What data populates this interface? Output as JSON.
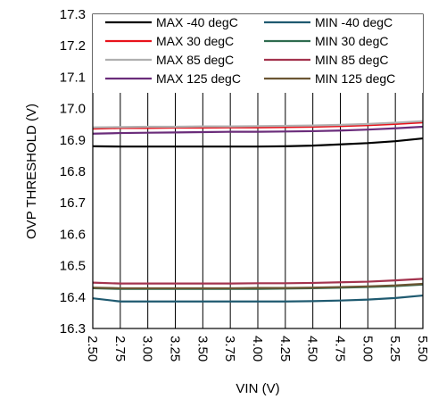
{
  "chart_data": {
    "type": "line",
    "xlabel": "VIN (V)",
    "ylabel": "OVP THRESHOLD (V)",
    "xlim": [
      2.5,
      5.5
    ],
    "ylim": [
      16.3,
      17.3
    ],
    "x_ticks": [
      "2.50",
      "2.75",
      "3.00",
      "3.25",
      "3.50",
      "3.75",
      "4.00",
      "4.25",
      "4.50",
      "4.75",
      "5.00",
      "5.25",
      "5.50"
    ],
    "y_ticks": [
      "16.3",
      "16.4",
      "16.5",
      "16.6",
      "16.7",
      "16.8",
      "16.9",
      "17.0",
      "17.1",
      "17.2",
      "17.3"
    ],
    "grid": "vertical",
    "legend_position": "top",
    "x": [
      2.5,
      2.75,
      3.0,
      3.25,
      3.5,
      3.75,
      4.0,
      4.25,
      4.5,
      4.75,
      5.0,
      5.25,
      5.5
    ],
    "series": [
      {
        "name": "MAX -40 degC",
        "color": "#000000",
        "values": [
          16.88,
          16.879,
          16.879,
          16.879,
          16.879,
          16.879,
          16.879,
          16.88,
          16.882,
          16.886,
          16.89,
          16.896,
          16.905
        ]
      },
      {
        "name": "MIN -40 degC",
        "color": "#1f5a70",
        "values": [
          16.396,
          16.386,
          16.386,
          16.386,
          16.386,
          16.386,
          16.386,
          16.386,
          16.387,
          16.389,
          16.392,
          16.397,
          16.405
        ]
      },
      {
        "name": "MAX 30 degC",
        "color": "#e8121b",
        "values": [
          16.936,
          16.938,
          16.938,
          16.939,
          16.939,
          16.94,
          16.94,
          16.941,
          16.942,
          16.944,
          16.947,
          16.951,
          16.956
        ]
      },
      {
        "name": "MIN 30 degC",
        "color": "#2e6b4f",
        "values": [
          16.428,
          16.426,
          16.426,
          16.426,
          16.426,
          16.426,
          16.426,
          16.427,
          16.428,
          16.43,
          16.432,
          16.435,
          16.44
        ]
      },
      {
        "name": "MAX 85 degC",
        "color": "#b0b0b0",
        "values": [
          16.94,
          16.941,
          16.942,
          16.942,
          16.943,
          16.943,
          16.944,
          16.945,
          16.946,
          16.948,
          16.951,
          16.955,
          16.96
        ]
      },
      {
        "name": "MIN 85 degC",
        "color": "#a3334e",
        "values": [
          16.446,
          16.443,
          16.443,
          16.443,
          16.443,
          16.443,
          16.444,
          16.444,
          16.445,
          16.447,
          16.449,
          16.453,
          16.458
        ]
      },
      {
        "name": "MAX 125 degC",
        "color": "#6a2c7a",
        "values": [
          16.92,
          16.922,
          16.923,
          16.924,
          16.925,
          16.926,
          16.926,
          16.927,
          16.928,
          16.93,
          16.933,
          16.937,
          16.942
        ]
      },
      {
        "name": "MIN 125 degC",
        "color": "#6b5533",
        "values": [
          16.43,
          16.428,
          16.428,
          16.428,
          16.428,
          16.428,
          16.429,
          16.429,
          16.43,
          16.432,
          16.434,
          16.437,
          16.442
        ]
      }
    ]
  }
}
